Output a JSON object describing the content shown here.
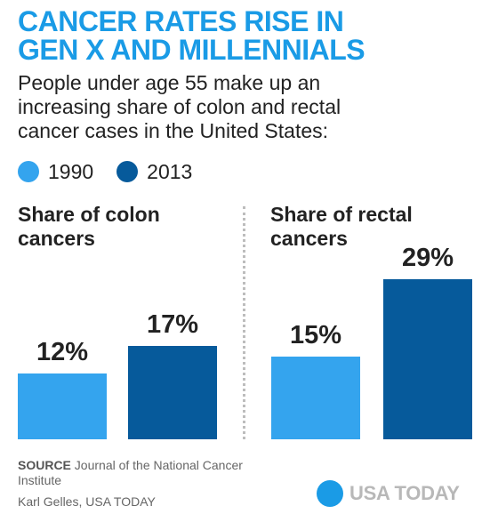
{
  "title_lines": [
    "CANCER RATES RISE IN",
    "GEN X AND MILLENNIALS"
  ],
  "subtitle_lines": [
    "People under age 55 make up an",
    "increasing share of colon and rectal",
    "cancer cases in the United States:"
  ],
  "colors": {
    "title": "#1a9be6",
    "y1990": "#34a4ee",
    "y2013": "#065a9b",
    "logo_text": "#b8b8b8"
  },
  "chart_data": [
    {
      "type": "bar",
      "title_lines": [
        "Share of colon",
        "cancers"
      ],
      "categories": [
        "1990",
        "2013"
      ],
      "values": [
        12,
        17
      ],
      "labels": [
        "12%",
        "17%"
      ],
      "unit": "%"
    },
    {
      "type": "bar",
      "title_lines": [
        "Share of rectal",
        "cancers"
      ],
      "categories": [
        "1990",
        "2013"
      ],
      "values": [
        15,
        29
      ],
      "labels": [
        "15%",
        "29%"
      ],
      "unit": "%"
    }
  ],
  "legend": [
    {
      "label": "1990",
      "color": "#34a4ee"
    },
    {
      "label": "2013",
      "color": "#065a9b"
    }
  ],
  "source": {
    "key": "SOURCE",
    "text": "Journal of the National Cancer Institute"
  },
  "credit": "Karl Gelles, USA TODAY",
  "logo": {
    "text": "USA TODAY",
    "icon": "usa-today-circle-icon"
  }
}
